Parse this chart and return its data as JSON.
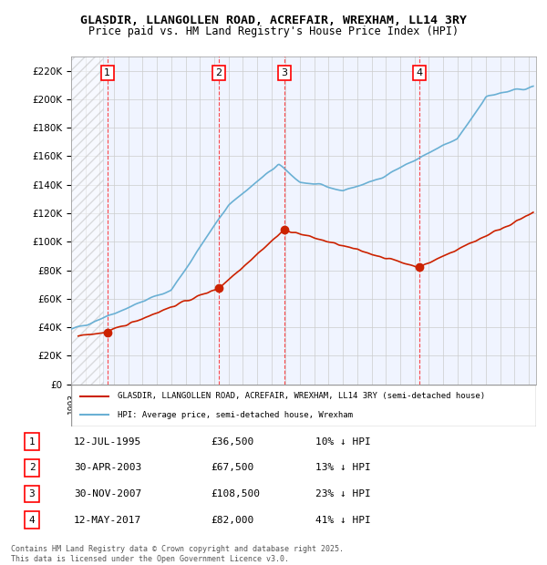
{
  "title": "GLASDIR, LLANGOLLEN ROAD, ACREFAIR, WREXHAM, LL14 3RY",
  "subtitle": "Price paid vs. HM Land Registry's House Price Index (HPI)",
  "ylabel": "",
  "ylim": [
    0,
    230000
  ],
  "yticks": [
    0,
    20000,
    40000,
    60000,
    80000,
    100000,
    120000,
    140000,
    160000,
    180000,
    200000,
    220000
  ],
  "ytick_labels": [
    "£0",
    "£20K",
    "£40K",
    "£60K",
    "£80K",
    "£100K",
    "£120K",
    "£140K",
    "£160K",
    "£180K",
    "£200K",
    "£220K"
  ],
  "xlim_start": 1993.0,
  "xlim_end": 2025.5,
  "sale_dates": [
    1995.53,
    2003.33,
    2007.92,
    2017.36
  ],
  "sale_prices": [
    36500,
    67500,
    108500,
    82000
  ],
  "sale_labels": [
    "1",
    "2",
    "3",
    "4"
  ],
  "hpi_color": "#6ab0d4",
  "sale_color": "#cc2200",
  "sale_dot_color": "#cc2200",
  "legend_sale_label": "GLASDIR, LLANGOLLEN ROAD, ACREFAIR, WREXHAM, LL14 3RY (semi-detached house)",
  "legend_hpi_label": "HPI: Average price, semi-detached house, Wrexham",
  "table_rows": [
    [
      "1",
      "12-JUL-1995",
      "£36,500",
      "10% ↓ HPI"
    ],
    [
      "2",
      "30-APR-2003",
      "£67,500",
      "13% ↓ HPI"
    ],
    [
      "3",
      "30-NOV-2007",
      "£108,500",
      "23% ↓ HPI"
    ],
    [
      "4",
      "12-MAY-2017",
      "£82,000",
      "41% ↓ HPI"
    ]
  ],
  "footer": "Contains HM Land Registry data © Crown copyright and database right 2025.\nThis data is licensed under the Open Government Licence v3.0.",
  "background_hatch_color": "#e8e8e8",
  "grid_color": "#cccccc",
  "plot_bg": "#f0f4ff"
}
